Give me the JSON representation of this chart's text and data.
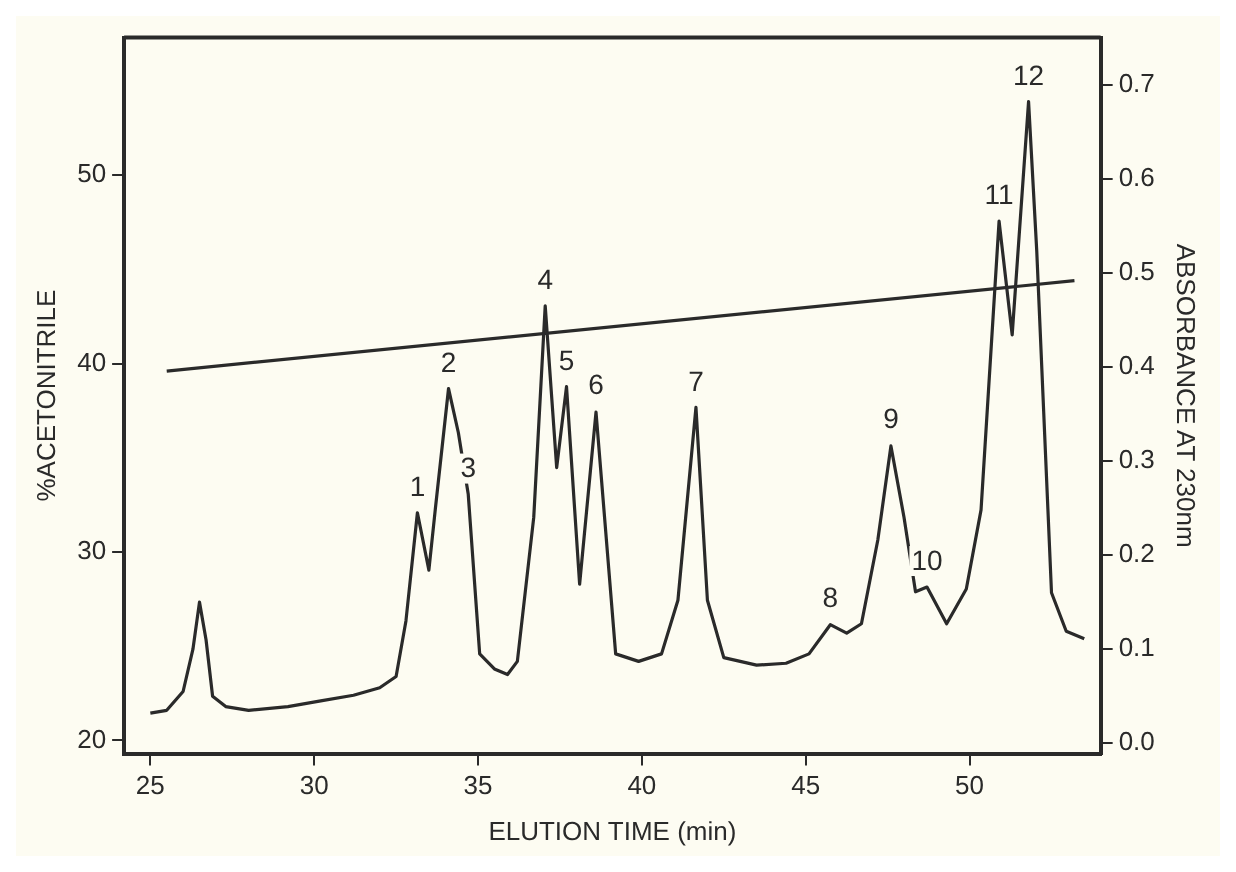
{
  "chart_data": {
    "type": "line",
    "xlabel": "ELUTION TIME (min)",
    "ylabel": "%ACETONITRILE",
    "y2label": "ABSORBANCE AT 230nm",
    "xlim": [
      24.2,
      54.0
    ],
    "xticks": [
      25,
      30,
      35,
      40,
      45,
      50
    ],
    "ylim": [
      19.3,
      57.3
    ],
    "yticks": [
      20,
      30,
      40,
      50
    ],
    "y2lim": [
      -0.011,
      0.75
    ],
    "y2ticks": [
      {
        "value": 0,
        "label": "0.0"
      },
      0.1,
      0.2,
      0.3,
      0.4,
      0.5,
      0.6,
      0.7
    ],
    "grid": false,
    "legend": false,
    "marker": "none",
    "line_style": "solid",
    "series": [
      {
        "color": "#2a2a2a",
        "axis": "y",
        "x": [
          25.5,
          53.2
        ],
        "values": [
          39.6,
          44.4
        ]
      },
      {
        "color": "#2a2a2a",
        "axis": "y2",
        "x": [
          25.0,
          25.5,
          26.0,
          26.3,
          26.5,
          26.7,
          26.9,
          27.3,
          28.0,
          29.2,
          30.2,
          31.2,
          32.0,
          32.5,
          32.8,
          33.15,
          33.5,
          33.7,
          34.1,
          34.4,
          34.7,
          35.05,
          35.5,
          35.9,
          36.2,
          36.7,
          37.05,
          37.4,
          37.7,
          38.1,
          38.6,
          39.2,
          39.9,
          40.6,
          41.1,
          41.65,
          42.0,
          42.5,
          43.5,
          44.4,
          45.1,
          45.75,
          46.25,
          46.7,
          47.2,
          47.6,
          48.0,
          48.35,
          48.7,
          49.3,
          49.9,
          50.35,
          50.9,
          51.3,
          51.8,
          52.05,
          52.5,
          52.95,
          53.5
        ],
        "values": [
          0.032,
          0.035,
          0.055,
          0.1,
          0.15,
          0.11,
          0.05,
          0.039,
          0.035,
          0.039,
          0.045,
          0.051,
          0.059,
          0.071,
          0.13,
          0.245,
          0.184,
          0.25,
          0.377,
          0.33,
          0.265,
          0.095,
          0.079,
          0.073,
          0.087,
          0.24,
          0.465,
          0.293,
          0.379,
          0.169,
          0.352,
          0.095,
          0.087,
          0.095,
          0.152,
          0.357,
          0.152,
          0.091,
          0.083,
          0.085,
          0.095,
          0.126,
          0.117,
          0.127,
          0.216,
          0.316,
          0.24,
          0.161,
          0.166,
          0.127,
          0.164,
          0.248,
          0.555,
          0.434,
          0.682,
          0.523,
          0.16,
          0.119,
          0.111
        ]
      }
    ],
    "annotations": [
      {
        "text": "1",
        "x": 33.15,
        "y": 32.1
      },
      {
        "text": "2",
        "x": 34.1,
        "y": 38.7
      },
      {
        "text": "3",
        "x": 34.7,
        "y": 33.1
      },
      {
        "text": "4",
        "x": 37.05,
        "y": 43.1
      },
      {
        "text": "5",
        "x": 37.7,
        "y": 38.8
      },
      {
        "text": "6",
        "x": 38.6,
        "y": 37.5
      },
      {
        "text": "7",
        "x": 41.65,
        "y": 37.7
      },
      {
        "text": "8",
        "x": 45.75,
        "y": 26.2
      },
      {
        "text": "9",
        "x": 47.6,
        "y": 35.7
      },
      {
        "text": "10",
        "x": 48.7,
        "y": 28.2
      },
      {
        "text": "11",
        "x": 50.9,
        "y": 47.6
      },
      {
        "text": "12",
        "x": 51.8,
        "y": 53.9
      }
    ]
  }
}
